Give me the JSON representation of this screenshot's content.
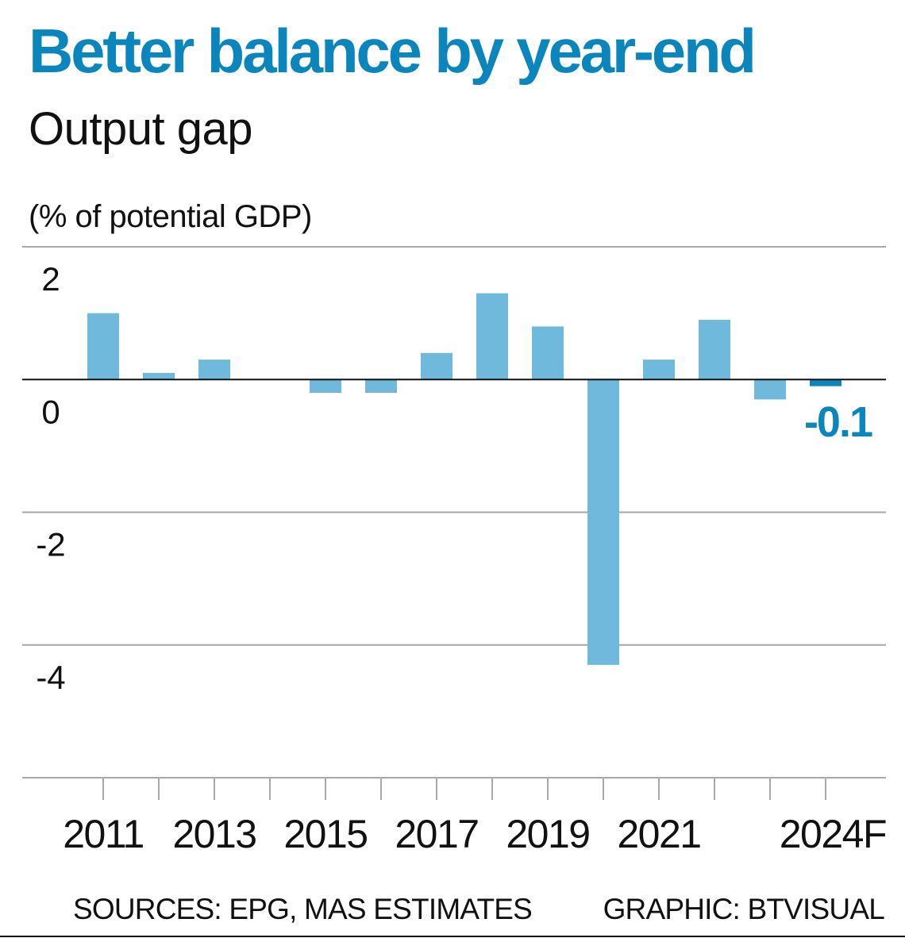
{
  "header": {
    "title": "Better balance by year-end",
    "subtitle": "Output gap",
    "unit_label": "(% of potential GDP)"
  },
  "footer": {
    "sources": "SOURCES: EPG, MAS ESTIMATES",
    "credit": "GRAPHIC: BTVISUAL"
  },
  "colors": {
    "title": "#0a86bd",
    "bar": "#6fb9dc",
    "highlight_bar": "#0a86bd",
    "gridline": "#a8a8a8",
    "zero_line": "#111111",
    "text": "#111111"
  },
  "chart_data": {
    "type": "bar",
    "title": "Better balance by year-end",
    "subtitle": "Output gap",
    "xlabel": "",
    "ylabel": "(% of potential GDP)",
    "categories": [
      "2011",
      "2012",
      "2013",
      "2014",
      "2015",
      "2016",
      "2017",
      "2018",
      "2019",
      "2020",
      "2021",
      "2022",
      "2023",
      "2024F"
    ],
    "x_tick_labels": [
      "2011",
      "",
      "2013",
      "",
      "2015",
      "",
      "2017",
      "",
      "2019",
      "",
      "2021",
      "",
      "",
      "2024F"
    ],
    "values": [
      1.0,
      0.1,
      0.3,
      0.0,
      -0.2,
      -0.2,
      0.4,
      1.3,
      0.8,
      -4.3,
      0.3,
      0.9,
      -0.3,
      -0.1
    ],
    "highlight": {
      "category": "2024F",
      "label": "-0.1"
    },
    "y_ticks": [
      2,
      0,
      -2,
      -4,
      -6
    ],
    "y_tick_labels": [
      "2",
      "0",
      "-2",
      "-4",
      ""
    ],
    "ylim": [
      -6,
      2
    ],
    "grid": true,
    "legend": "none"
  }
}
